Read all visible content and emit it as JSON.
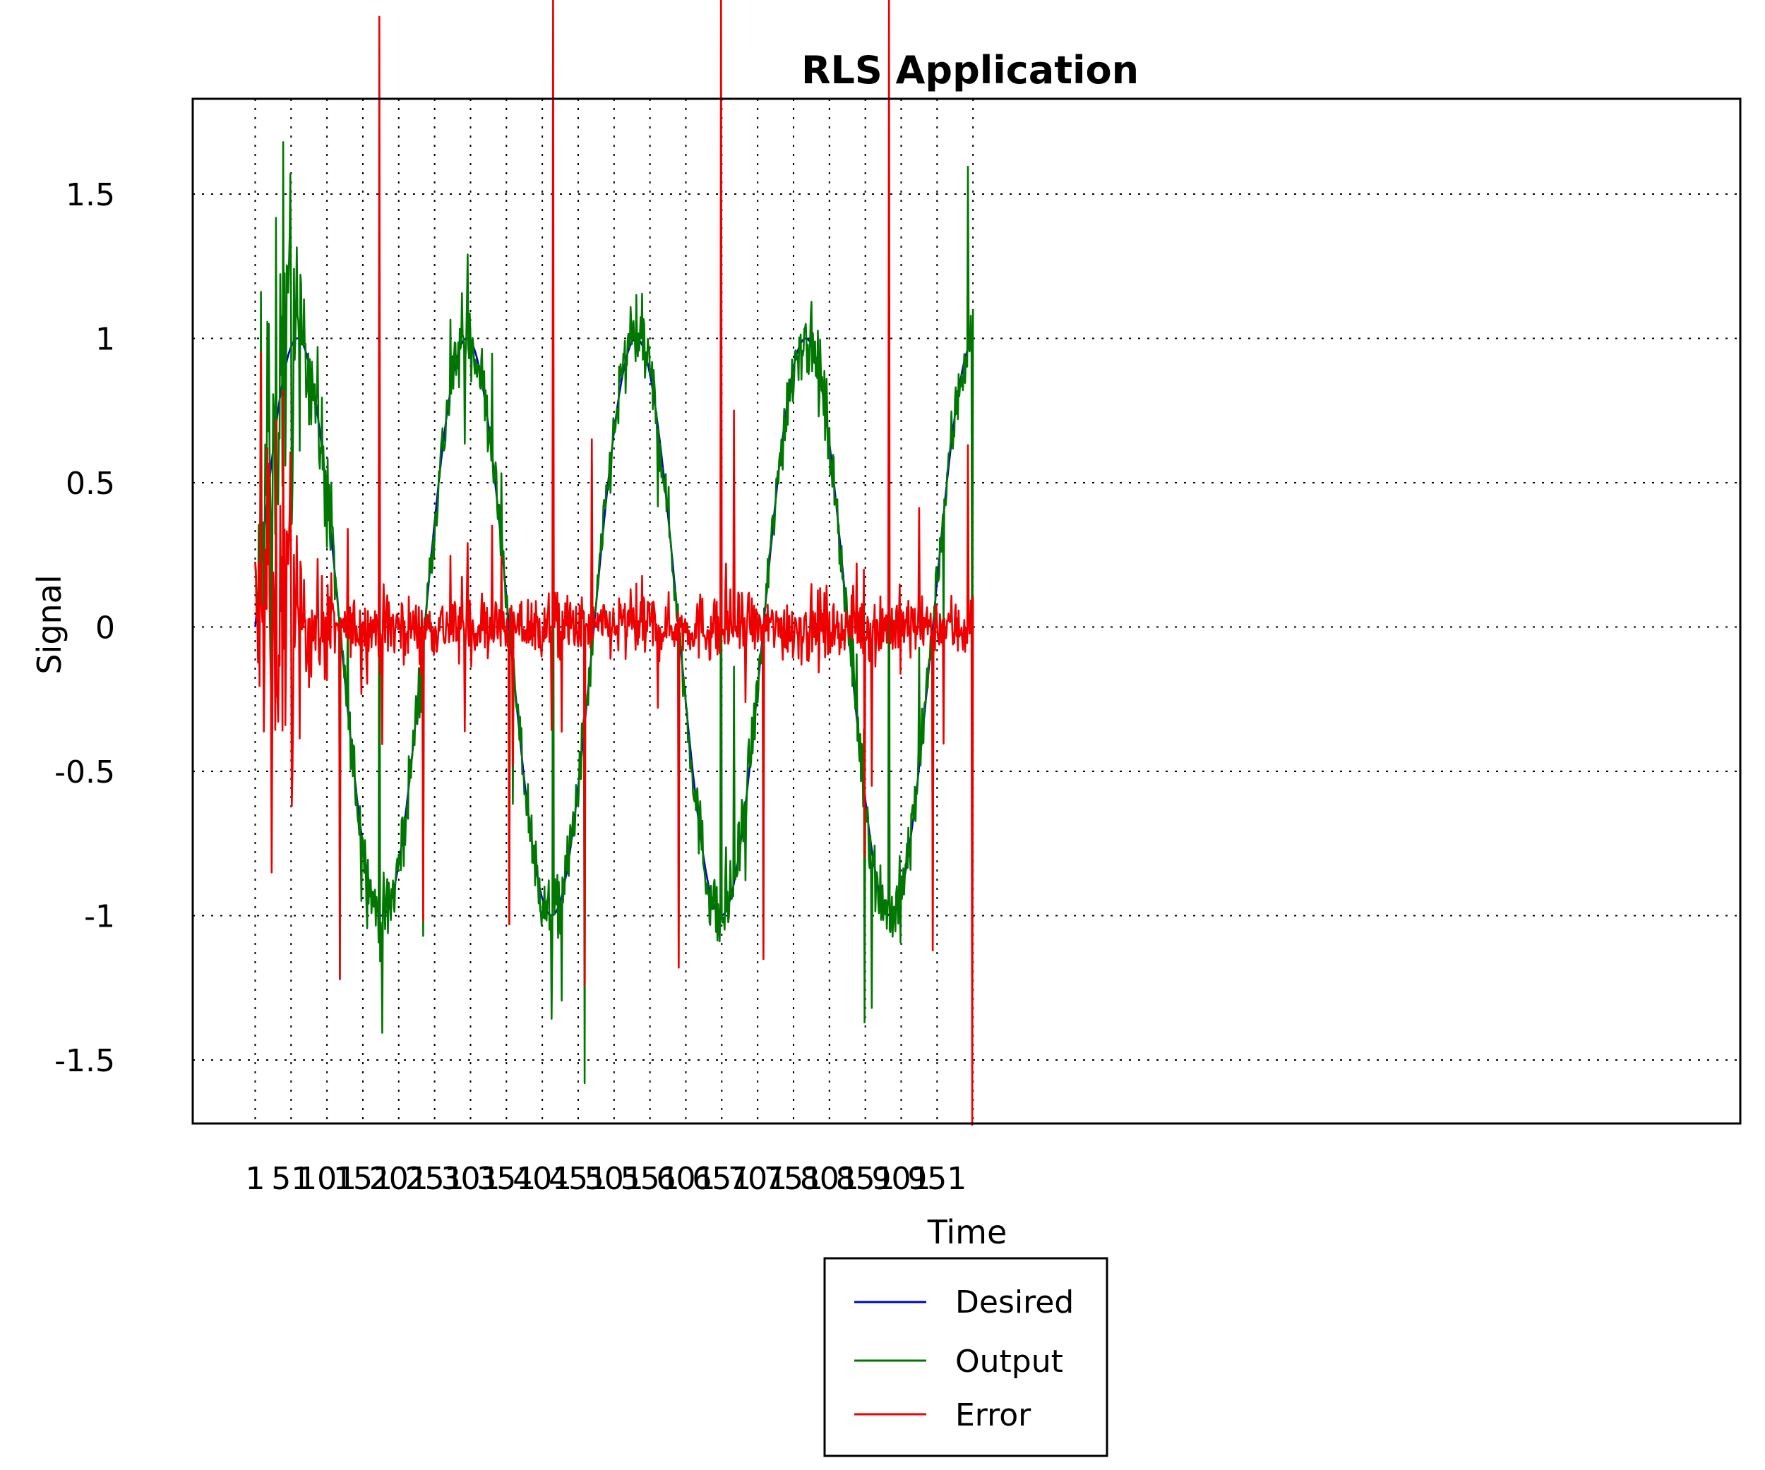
{
  "chart_data": {
    "type": "line",
    "title": "RLS Application",
    "xlabel": "Time",
    "ylabel": "Signal",
    "xlim": [
      -86,
      2070
    ],
    "ylim": [
      -1.72,
      1.83
    ],
    "x_ticks": [
      1,
      51,
      101,
      151,
      201,
      251,
      301,
      351,
      401,
      451,
      501,
      551,
      601,
      651,
      701,
      751,
      801,
      851,
      901,
      951
    ],
    "x_tick_labels": [
      "1",
      "51",
      "101",
      "151",
      "201",
      "251",
      "301",
      "351",
      "401",
      "451",
      "501",
      "551",
      "601",
      "651",
      "701",
      "751",
      "801",
      "851",
      "901",
      "951"
    ],
    "y_ticks": [
      1.5,
      1,
      0.5,
      0,
      -0.5,
      -1,
      -1.5
    ],
    "y_tick_labels": [
      "1.5",
      "1",
      "0.5",
      "0",
      "-0.5",
      "-1",
      "-1.5"
    ],
    "grid": true,
    "legend_position": "bottom-center",
    "n_points": 1001,
    "series": [
      {
        "name": "Desired",
        "color": "#0000cc",
        "sample_x": [
          1,
          60,
          119,
          178,
          237,
          296,
          355,
          414,
          473,
          532,
          591,
          650,
          709,
          768,
          827,
          886,
          945,
          1001
        ],
        "sample_y": [
          0.0,
          1.0,
          0.0,
          -1.0,
          0.0,
          1.0,
          0.0,
          -1.0,
          0.0,
          1.0,
          0.0,
          -1.0,
          0.0,
          1.0,
          0.0,
          -1.0,
          0.0,
          -0.1
        ]
      },
      {
        "name": "Output",
        "color": "#007700",
        "sample_x": [
          1,
          20,
          40,
          50,
          60,
          90,
          100,
          119,
          178,
          237,
          296,
          355,
          414,
          473,
          532,
          591,
          650,
          709,
          768,
          827,
          886,
          945,
          1001
        ],
        "sample_y": [
          0.0,
          1.05,
          1.68,
          1.57,
          1.0,
          0.5,
          0.0,
          -1.22,
          1.12,
          -1.07,
          1.13,
          -1.03,
          1.26,
          -1.58,
          1.15,
          -1.18,
          1.32,
          -1.15,
          1.05,
          -1.37,
          1.2,
          -1.12,
          -0.73
        ]
      },
      {
        "name": "Error",
        "color": "#ee0000",
        "sample_x": [
          1,
          18,
          24,
          36,
          48,
          58,
          150,
          360,
          470,
          670,
          860,
          990,
          1001
        ],
        "sample_y": [
          0.0,
          1.06,
          -0.85,
          0.44,
          -0.62,
          0.2,
          0.34,
          -0.48,
          0.65,
          0.75,
          -0.6,
          0.63,
          0.05
        ]
      }
    ]
  }
}
